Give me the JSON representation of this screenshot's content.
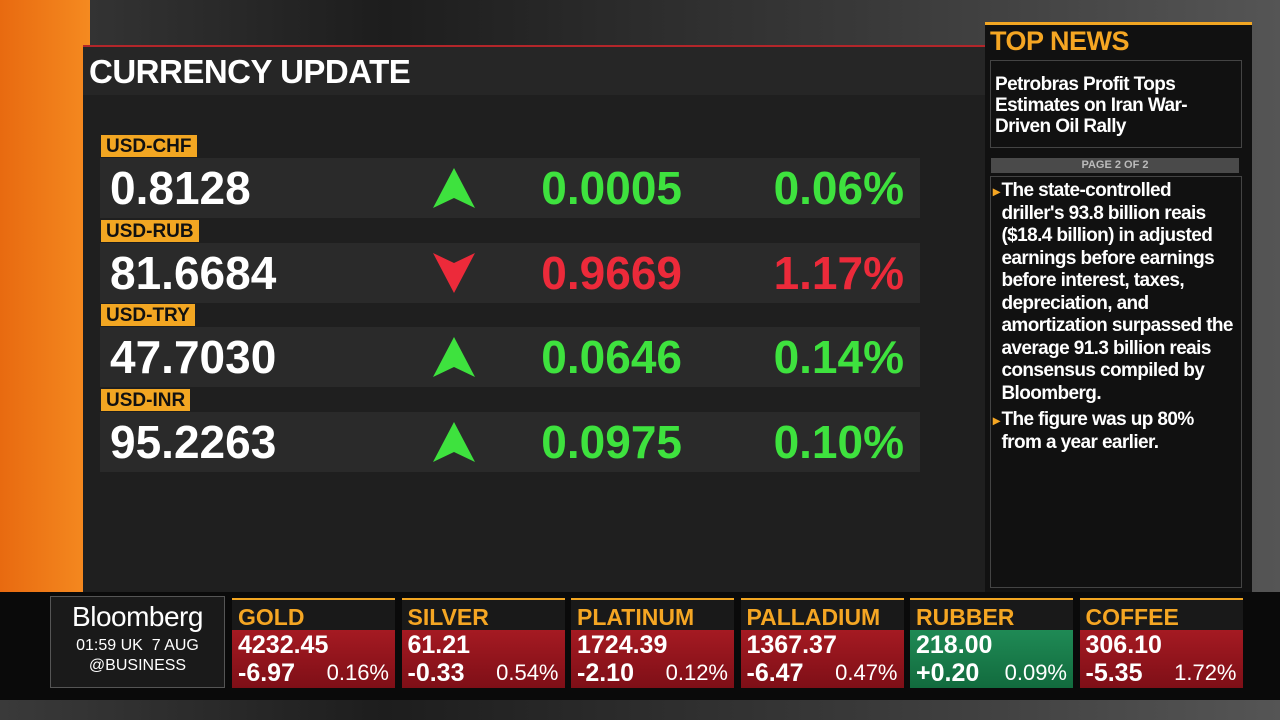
{
  "header": {
    "title": "CURRENCY UPDATE"
  },
  "currencies": [
    {
      "pair": "USD-CHF",
      "rate": "0.8128",
      "change": "0.0005",
      "percent": "0.06%",
      "direction": "up"
    },
    {
      "pair": "USD-RUB",
      "rate": "81.6684",
      "change": "0.9669",
      "percent": "1.17%",
      "direction": "down"
    },
    {
      "pair": "USD-TRY",
      "rate": "47.7030",
      "change": "0.0646",
      "percent": "0.14%",
      "direction": "up"
    },
    {
      "pair": "USD-INR",
      "rate": "95.2263",
      "change": "0.0975",
      "percent": "0.10%",
      "direction": "up"
    }
  ],
  "news": {
    "title": "TOP NEWS",
    "headline": "Petrobras Profit Tops Estimates on Iran War-Driven Oil Rally",
    "page": "PAGE 2 OF 2",
    "bullets": [
      "The state-controlled driller's 93.8 billion reais ($18.4 billion) in adjusted earnings before earnings before interest, taxes, depreciation, and amortization surpassed the average 91.3 billion reais consensus compiled by Bloomberg.",
      "The figure was up 80% from a year earlier."
    ]
  },
  "ticker": {
    "brand": "Bloomberg",
    "time": "01:59 UK  7 AUG",
    "handle": "@BUSINESS",
    "items": [
      {
        "name": "GOLD",
        "price": "4232.45",
        "change": "-6.97",
        "percent": "0.16%",
        "direction": "down"
      },
      {
        "name": "SILVER",
        "price": "61.21",
        "change": "-0.33",
        "percent": "0.54%",
        "direction": "down"
      },
      {
        "name": "PLATINUM",
        "price": "1724.39",
        "change": "-2.10",
        "percent": "0.12%",
        "direction": "down"
      },
      {
        "name": "PALLADIUM",
        "price": "1367.37",
        "change": "-6.47",
        "percent": "0.47%",
        "direction": "down"
      },
      {
        "name": "RUBBER",
        "price": "218.00",
        "change": "+0.20",
        "percent": "0.09%",
        "direction": "up"
      },
      {
        "name": "COFFEE",
        "price": "306.10",
        "change": "-5.35",
        "percent": "1.72%",
        "direction": "down"
      }
    ]
  }
}
